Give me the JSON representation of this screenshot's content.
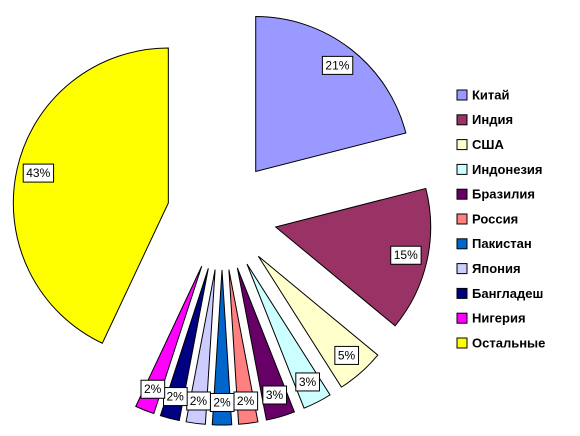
{
  "chart_data": {
    "type": "pie",
    "categories": [
      "Китай",
      "Индия",
      "США",
      "Индонезия",
      "Бразилия",
      "Россия",
      "Пакистан",
      "Япония",
      "Бангладеш",
      "Нигерия",
      "Остальные"
    ],
    "values": [
      21,
      15,
      5,
      3,
      3,
      2,
      2,
      2,
      2,
      2,
      43
    ],
    "value_labels": [
      "21%",
      "15%",
      "5%",
      "3%",
      "3%",
      "2%",
      "2%",
      "2%",
      "2%",
      "2%",
      "43%"
    ],
    "colors": [
      "#9999ff",
      "#993366",
      "#ffffcc",
      "#ccffff",
      "#660066",
      "#ff8080",
      "#0066cc",
      "#ccccff",
      "#000080",
      "#ff00ff",
      "#ffff00"
    ],
    "exploded": true,
    "legend": "right"
  }
}
